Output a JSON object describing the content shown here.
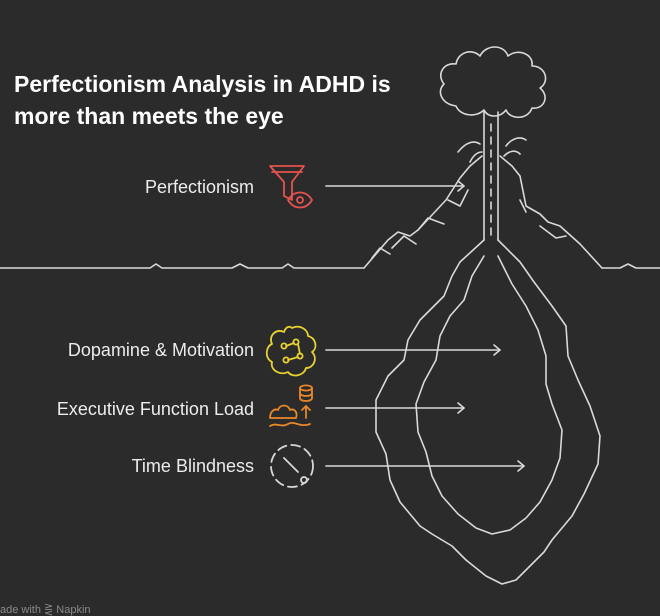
{
  "title": {
    "line1": "Perfectionism Analysis in ADHD is",
    "line2": "more than meets the eye"
  },
  "layers": [
    {
      "label": "Perfectionism",
      "icon": "funnel-eye-icon",
      "color": "#e4534e",
      "zone": "above-surface"
    },
    {
      "label": "Dopamine & Motivation",
      "icon": "brain-neuron-icon",
      "color": "#e8d232",
      "zone": "below-surface"
    },
    {
      "label": "Executive Function Load",
      "icon": "effort-stack-icon",
      "color": "#e8882a",
      "zone": "below-surface"
    },
    {
      "label": "Time Blindness",
      "icon": "dashed-clock-icon",
      "color": "#d8d8d8",
      "zone": "below-surface"
    }
  ],
  "footer": "ade with ⋛ Napkin",
  "colors": {
    "background": "#2b2b2b",
    "line": "#d9d9d9",
    "text": "#ececec"
  }
}
